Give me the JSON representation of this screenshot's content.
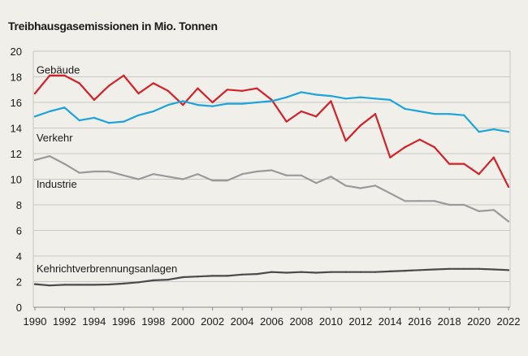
{
  "chart_data": {
    "type": "line",
    "ylabel": "Treibhausgasemissionen in Mio. Tonnen",
    "ylim": [
      0,
      20
    ],
    "yticks": [
      0,
      2,
      4,
      6,
      8,
      10,
      12,
      14,
      16,
      18,
      20
    ],
    "xlim": [
      1990,
      2022
    ],
    "xticks": [
      1990,
      1992,
      1994,
      1996,
      1998,
      2000,
      2002,
      2004,
      2006,
      2008,
      2010,
      2012,
      2014,
      2016,
      2018,
      2020,
      2022
    ],
    "grid": "horizontal",
    "x": [
      1990,
      1991,
      1992,
      1993,
      1994,
      1995,
      1996,
      1997,
      1998,
      1999,
      2000,
      2001,
      2002,
      2003,
      2004,
      2005,
      2006,
      2007,
      2008,
      2009,
      2010,
      2011,
      2012,
      2013,
      2014,
      2015,
      2016,
      2017,
      2018,
      2019,
      2020,
      2021,
      2022
    ],
    "series": [
      {
        "name": "Gebäude",
        "color": "#d42027",
        "values": [
          16.7,
          18.1,
          18.1,
          17.5,
          16.2,
          17.3,
          18.1,
          16.7,
          17.5,
          16.9,
          15.8,
          17.1,
          16.0,
          17.0,
          16.9,
          17.1,
          16.2,
          14.5,
          15.3,
          14.9,
          16.1,
          13.0,
          14.2,
          15.1,
          11.7,
          12.5,
          13.1,
          12.5,
          11.2,
          11.2,
          10.4,
          11.7,
          9.4
        ]
      },
      {
        "name": "Verkehr",
        "color": "#1aa3dc",
        "values": [
          14.9,
          15.3,
          15.6,
          14.6,
          14.8,
          14.4,
          14.5,
          15.0,
          15.3,
          15.8,
          16.1,
          15.8,
          15.7,
          15.9,
          15.9,
          16.0,
          16.1,
          16.4,
          16.8,
          16.6,
          16.5,
          16.3,
          16.4,
          16.3,
          16.2,
          15.5,
          15.3,
          15.1,
          15.1,
          15.0,
          13.7,
          13.9,
          13.7
        ]
      },
      {
        "name": "Industrie",
        "color": "#9a9a9a",
        "values": [
          11.5,
          11.8,
          11.2,
          10.5,
          10.6,
          10.6,
          10.3,
          10.0,
          10.4,
          10.2,
          10.0,
          10.4,
          9.9,
          9.9,
          10.4,
          10.6,
          10.7,
          10.3,
          10.3,
          9.7,
          10.2,
          9.5,
          9.3,
          9.5,
          8.9,
          8.3,
          8.3,
          8.3,
          8.0,
          8.0,
          7.5,
          7.6,
          6.7
        ]
      },
      {
        "name": "Kehrichtverbrennungsanlagen",
        "color": "#4a4a4a",
        "values": [
          1.8,
          1.7,
          1.75,
          1.75,
          1.75,
          1.78,
          1.85,
          1.95,
          2.1,
          2.15,
          2.35,
          2.4,
          2.45,
          2.45,
          2.55,
          2.6,
          2.75,
          2.7,
          2.75,
          2.7,
          2.75,
          2.75,
          2.75,
          2.75,
          2.8,
          2.85,
          2.9,
          2.95,
          3.0,
          3.0,
          3.0,
          2.95,
          2.9
        ]
      }
    ],
    "series_labels": [
      {
        "text": "Gebäude",
        "x": 1990.1,
        "y": 18.5
      },
      {
        "text": "Verkehr",
        "x": 1990.1,
        "y": 13.2
      },
      {
        "text": "Industrie",
        "x": 1990.1,
        "y": 9.6
      },
      {
        "text": "Kehrichtverbrennungsanlagen",
        "x": 1990.1,
        "y": 3.0
      }
    ]
  }
}
